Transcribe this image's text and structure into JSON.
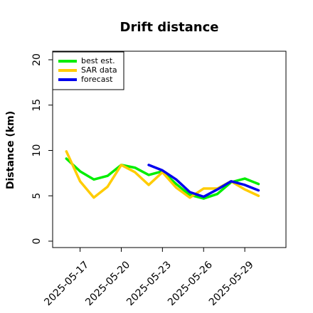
{
  "chart_data": {
    "type": "line",
    "title": "Drift distance",
    "xlabel": "",
    "ylabel": "Distance (km)",
    "ylim": [
      0,
      20
    ],
    "xlim": [
      "2025-05-15",
      "2025-06-01"
    ],
    "yticks": [
      0,
      5,
      10,
      15,
      20
    ],
    "xticks": [
      "2025-05-17",
      "2025-05-20",
      "2025-05-23",
      "2025-05-26",
      "2025-05-29"
    ],
    "grid": false,
    "legend_position": "top-left",
    "series": [
      {
        "name": "best est.",
        "color": "#00ee00",
        "x": [
          "2025-05-16",
          "2025-05-17",
          "2025-05-18",
          "2025-05-19",
          "2025-05-20",
          "2025-05-21",
          "2025-05-22",
          "2025-05-23",
          "2025-05-24",
          "2025-05-25",
          "2025-05-26",
          "2025-05-27",
          "2025-05-28",
          "2025-05-29",
          "2025-05-30"
        ],
        "values": [
          9.1,
          7.7,
          6.8,
          7.2,
          8.4,
          8.1,
          7.3,
          7.7,
          6.3,
          5.1,
          4.7,
          5.2,
          6.5,
          6.9,
          6.3
        ]
      },
      {
        "name": "SAR data",
        "color": "#ffcc00",
        "x": [
          "2025-05-16",
          "2025-05-17",
          "2025-05-18",
          "2025-05-19",
          "2025-05-20",
          "2025-05-21",
          "2025-05-22",
          "2025-05-23",
          "2025-05-24",
          "2025-05-25",
          "2025-05-26",
          "2025-05-27",
          "2025-05-28",
          "2025-05-29",
          "2025-05-30"
        ],
        "values": [
          9.9,
          6.6,
          4.8,
          6.0,
          8.4,
          7.6,
          6.2,
          7.6,
          5.9,
          4.8,
          5.8,
          5.8,
          6.6,
          5.7,
          5.0
        ]
      },
      {
        "name": "forecast",
        "color": "#0000ee",
        "x": [
          "2025-05-22",
          "2025-05-23",
          "2025-05-24",
          "2025-05-25",
          "2025-05-26",
          "2025-05-27",
          "2025-05-28",
          "2025-05-29",
          "2025-05-30"
        ],
        "values": [
          8.4,
          7.8,
          6.8,
          5.4,
          4.9,
          5.7,
          6.6,
          6.2,
          5.6
        ]
      }
    ]
  }
}
